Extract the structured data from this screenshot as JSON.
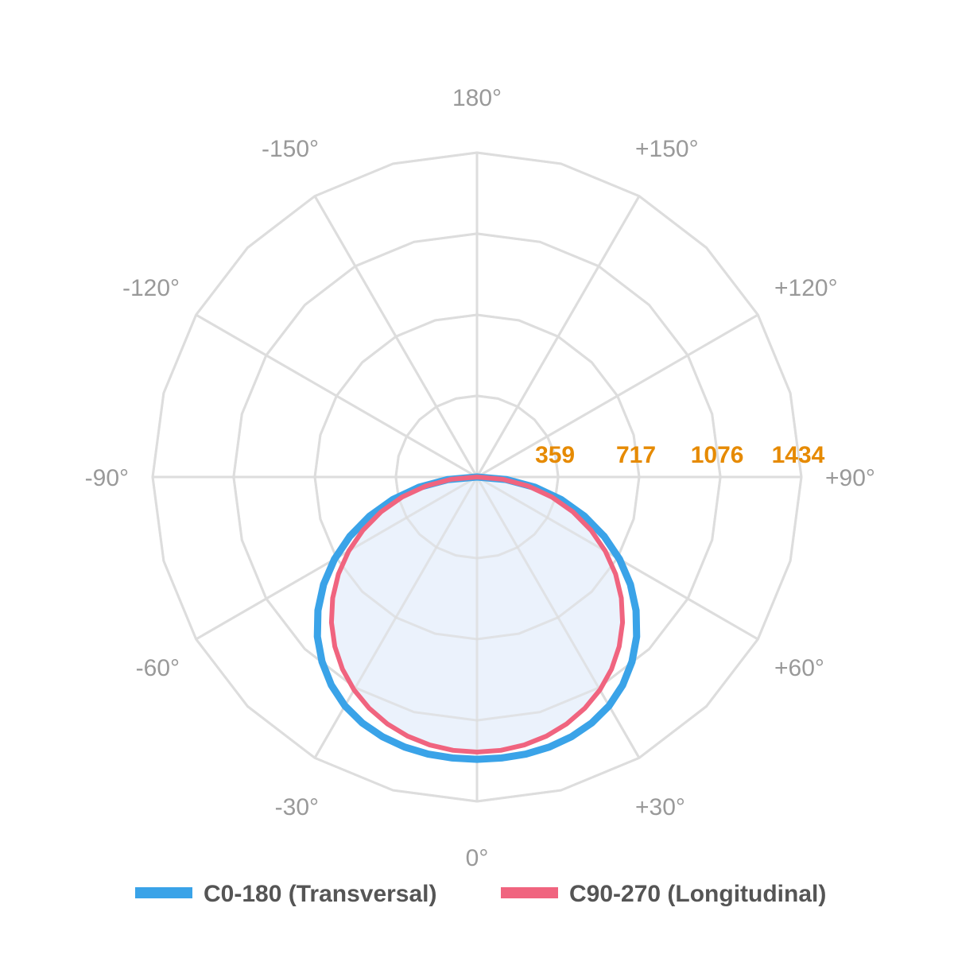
{
  "chart_data": {
    "type": "polar",
    "r_ticks": [
      359,
      717,
      1076,
      1434
    ],
    "r_tick_labels": [
      "359",
      "717",
      "1076",
      "1434"
    ],
    "r_max": 1434,
    "angle_ticks": [
      {
        "deg": 0,
        "label": "0°"
      },
      {
        "deg": 30,
        "label": "+30°"
      },
      {
        "deg": 60,
        "label": "+60°"
      },
      {
        "deg": 90,
        "label": "+90°"
      },
      {
        "deg": 120,
        "label": "+120°"
      },
      {
        "deg": 150,
        "label": "+150°"
      },
      {
        "deg": 180,
        "label": "180°"
      },
      {
        "deg": -150,
        "label": "-150°"
      },
      {
        "deg": -120,
        "label": "-120°"
      },
      {
        "deg": -90,
        "label": "-90°"
      },
      {
        "deg": -60,
        "label": "-60°"
      },
      {
        "deg": -30,
        "label": "-30°"
      }
    ],
    "grid": true,
    "legend_position": "bottom",
    "series": [
      {
        "name": "C0-180 (Transversal)",
        "color": "#3aa3e8",
        "fill": false,
        "points": [
          [
            -90,
            0
          ],
          [
            -85,
            130
          ],
          [
            -80,
            260
          ],
          [
            -75,
            385
          ],
          [
            -70,
            505
          ],
          [
            -65,
            620
          ],
          [
            -60,
            728
          ],
          [
            -55,
            828
          ],
          [
            -50,
            918
          ],
          [
            -45,
            998
          ],
          [
            -40,
            1066
          ],
          [
            -35,
            1123
          ],
          [
            -30,
            1168
          ],
          [
            -25,
            1200
          ],
          [
            -20,
            1222
          ],
          [
            -15,
            1236
          ],
          [
            -10,
            1244
          ],
          [
            -5,
            1247
          ],
          [
            0,
            1248
          ],
          [
            5,
            1247
          ],
          [
            10,
            1244
          ],
          [
            15,
            1236
          ],
          [
            20,
            1222
          ],
          [
            25,
            1200
          ],
          [
            30,
            1168
          ],
          [
            35,
            1123
          ],
          [
            40,
            1066
          ],
          [
            45,
            998
          ],
          [
            50,
            918
          ],
          [
            55,
            828
          ],
          [
            60,
            728
          ],
          [
            65,
            620
          ],
          [
            70,
            505
          ],
          [
            75,
            385
          ],
          [
            80,
            260
          ],
          [
            85,
            130
          ],
          [
            90,
            0
          ]
        ]
      },
      {
        "name": "C90-270 (Longitudinal)",
        "color": "#f0647f",
        "fill": true,
        "points": [
          [
            -90,
            0
          ],
          [
            -85,
            115
          ],
          [
            -80,
            230
          ],
          [
            -75,
            343
          ],
          [
            -70,
            452
          ],
          [
            -65,
            556
          ],
          [
            -60,
            655
          ],
          [
            -55,
            748
          ],
          [
            -50,
            833
          ],
          [
            -45,
            910
          ],
          [
            -40,
            978
          ],
          [
            -35,
            1037
          ],
          [
            -30,
            1087
          ],
          [
            -25,
            1128
          ],
          [
            -20,
            1161
          ],
          [
            -15,
            1186
          ],
          [
            -10,
            1203
          ],
          [
            -5,
            1213
          ],
          [
            0,
            1216
          ],
          [
            5,
            1213
          ],
          [
            10,
            1203
          ],
          [
            15,
            1186
          ],
          [
            20,
            1161
          ],
          [
            25,
            1128
          ],
          [
            30,
            1087
          ],
          [
            35,
            1037
          ],
          [
            40,
            978
          ],
          [
            45,
            910
          ],
          [
            50,
            833
          ],
          [
            55,
            748
          ],
          [
            60,
            655
          ],
          [
            65,
            556
          ],
          [
            70,
            452
          ],
          [
            75,
            343
          ],
          [
            80,
            230
          ],
          [
            85,
            115
          ],
          [
            90,
            0
          ]
        ]
      }
    ]
  },
  "colors": {
    "grid": "#dddddd",
    "area_fill": "#e8f0fb",
    "ring_label": "#e68a00",
    "angle_label": "#999999",
    "legend_text": "#555555"
  }
}
